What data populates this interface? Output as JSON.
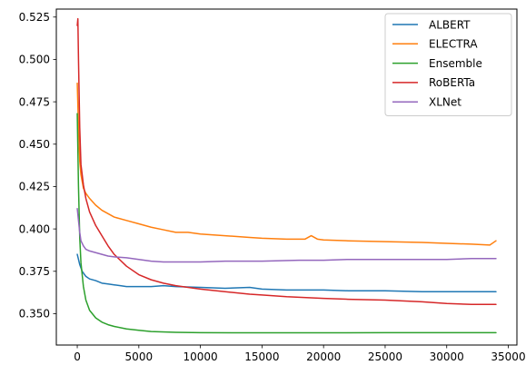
{
  "chart_data": {
    "type": "line",
    "title": "",
    "xlabel": "",
    "ylabel": "",
    "xlim": [
      -1700,
      35700
    ],
    "ylim": [
      0.3315,
      0.5297
    ],
    "xticks": [
      0,
      5000,
      10000,
      15000,
      20000,
      25000,
      30000,
      35000
    ],
    "xtick_labels": [
      "0",
      "5000",
      "10000",
      "15000",
      "20000",
      "25000",
      "30000",
      "35000"
    ],
    "yticks": [
      0.35,
      0.375,
      0.4,
      0.425,
      0.45,
      0.475,
      0.5,
      0.525
    ],
    "ytick_labels": [
      "0.350",
      "0.375",
      "0.400",
      "0.425",
      "0.450",
      "0.475",
      "0.500",
      "0.525"
    ],
    "grid": false,
    "legend_position": "top-right",
    "series": [
      {
        "name": "ALBERT",
        "color": "#1f77b4",
        "x": [
          0,
          200,
          400,
          700,
          1000,
          1500,
          2000,
          2500,
          3000,
          3500,
          4000,
          5000,
          6000,
          7000,
          8000,
          10000,
          12000,
          14000,
          15000,
          17000,
          20000,
          22000,
          25000,
          28000,
          30000,
          32000,
          34000
        ],
        "y": [
          0.385,
          0.379,
          0.375,
          0.372,
          0.3705,
          0.3695,
          0.368,
          0.3675,
          0.367,
          0.3665,
          0.366,
          0.366,
          0.366,
          0.3665,
          0.366,
          0.3655,
          0.365,
          0.3655,
          0.3645,
          0.364,
          0.364,
          0.3635,
          0.3635,
          0.363,
          0.363,
          0.363,
          0.363
        ]
      },
      {
        "name": "ELECTRA",
        "color": "#ff7f0e",
        "x": [
          0,
          100,
          200,
          300,
          500,
          700,
          1000,
          1500,
          2000,
          2500,
          3000,
          4000,
          5000,
          6000,
          7000,
          8000,
          9000,
          10000,
          12000,
          14000,
          15000,
          17000,
          18500,
          19000,
          19500,
          20000,
          22000,
          25000,
          28000,
          30000,
          32000,
          33500,
          34000
        ],
        "y": [
          0.486,
          0.46,
          0.44,
          0.432,
          0.424,
          0.421,
          0.418,
          0.414,
          0.411,
          0.409,
          0.407,
          0.405,
          0.403,
          0.401,
          0.3995,
          0.398,
          0.398,
          0.397,
          0.396,
          0.395,
          0.3945,
          0.394,
          0.394,
          0.396,
          0.394,
          0.3935,
          0.393,
          0.3925,
          0.392,
          0.3915,
          0.391,
          0.3905,
          0.393
        ]
      },
      {
        "name": "Ensemble",
        "color": "#2ca02c",
        "x": [
          0,
          100,
          200,
          300,
          500,
          700,
          1000,
          1500,
          2000,
          2500,
          3000,
          4000,
          5000,
          6000,
          8000,
          10000,
          15000,
          20000,
          25000,
          30000,
          34000
        ],
        "y": [
          0.468,
          0.425,
          0.395,
          0.38,
          0.366,
          0.358,
          0.352,
          0.3475,
          0.345,
          0.3435,
          0.3425,
          0.341,
          0.3402,
          0.3395,
          0.339,
          0.3388,
          0.3387,
          0.3387,
          0.3388,
          0.3388,
          0.3388
        ]
      },
      {
        "name": "RoBERTa",
        "color": "#d62728",
        "x": [
          0,
          50,
          100,
          200,
          300,
          500,
          700,
          1000,
          1500,
          2000,
          2500,
          3000,
          4000,
          5000,
          6000,
          7000,
          8000,
          9000,
          10000,
          12000,
          14000,
          15000,
          17000,
          20000,
          22000,
          25000,
          28000,
          30000,
          32000,
          34000
        ],
        "y": [
          0.52,
          0.524,
          0.5,
          0.46,
          0.438,
          0.426,
          0.418,
          0.41,
          0.402,
          0.396,
          0.39,
          0.385,
          0.378,
          0.373,
          0.37,
          0.368,
          0.3665,
          0.3655,
          0.3645,
          0.363,
          0.3615,
          0.361,
          0.36,
          0.359,
          0.3585,
          0.358,
          0.357,
          0.356,
          0.3555,
          0.3555
        ]
      },
      {
        "name": "XLNet",
        "color": "#9467bd",
        "x": [
          0,
          100,
          200,
          300,
          500,
          700,
          1000,
          1500,
          2000,
          2500,
          3000,
          4000,
          5000,
          6000,
          7000,
          8000,
          10000,
          12000,
          15000,
          18000,
          20000,
          22000,
          25000,
          28000,
          30000,
          32000,
          34000
        ],
        "y": [
          0.412,
          0.405,
          0.398,
          0.393,
          0.39,
          0.388,
          0.387,
          0.386,
          0.385,
          0.384,
          0.3835,
          0.383,
          0.382,
          0.381,
          0.3805,
          0.3805,
          0.3805,
          0.381,
          0.381,
          0.3815,
          0.3815,
          0.382,
          0.382,
          0.382,
          0.382,
          0.3825,
          0.3825
        ]
      }
    ]
  }
}
